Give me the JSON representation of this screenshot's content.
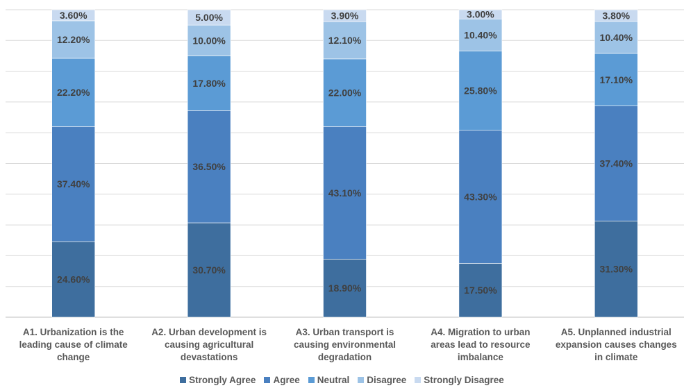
{
  "chart_data": {
    "type": "bar",
    "stacked": true,
    "categories": [
      "A1. Urbanization is the leading cause of climate change",
      "A2. Urban development is causing agricultural devastations",
      "A3. Urban transport is causing environmental degradation",
      "A4. Migration to urban areas lead to resource imbalance",
      "A5. Unplanned industrial expansion causes changes in climate"
    ],
    "category_lines": [
      [
        "A1. Urbanization is the",
        "leading cause of climate",
        "change"
      ],
      [
        "A2. Urban development is",
        "causing agricultural",
        "devastations"
      ],
      [
        "A3. Urban transport is",
        "causing environmental",
        "degradation"
      ],
      [
        "A4. Migration to urban",
        "areas lead to resource",
        "imbalance"
      ],
      [
        "A5. Unplanned industrial",
        "expansion causes changes",
        "in climate"
      ]
    ],
    "series": [
      {
        "name": "Strongly Agree",
        "color": "#3e6e9e",
        "values": [
          24.6,
          30.7,
          18.9,
          17.5,
          31.3
        ],
        "labels": [
          "24.60%",
          "30.70%",
          "18.90%",
          "17.50%",
          "31.30%"
        ]
      },
      {
        "name": "Agree",
        "color": "#4a80c0",
        "values": [
          37.4,
          36.5,
          43.1,
          43.3,
          37.4
        ],
        "labels": [
          "37.40%",
          "36.50%",
          "43.10%",
          "43.30%",
          "37.40%"
        ]
      },
      {
        "name": "Neutral",
        "color": "#5b9bd5",
        "values": [
          22.2,
          17.8,
          22.0,
          25.8,
          17.1
        ],
        "labels": [
          "22.20%",
          "17.80%",
          "22.00%",
          "25.80%",
          "17.10%"
        ]
      },
      {
        "name": "Disagree",
        "color": "#9dc3e6",
        "values": [
          12.2,
          10.0,
          12.1,
          10.4,
          10.4
        ],
        "labels": [
          "12.20%",
          "10.00%",
          "12.10%",
          "10.40%",
          "10.40%"
        ]
      },
      {
        "name": "Strongly Disagree",
        "color": "#c9daf0",
        "values": [
          3.6,
          5.0,
          3.9,
          3.0,
          3.8
        ],
        "labels": [
          "3.60%",
          "5.00%",
          "3.90%",
          "3.00%",
          "3.80%"
        ]
      }
    ],
    "ylim": [
      0,
      100
    ],
    "grid": true,
    "legend_position": "bottom",
    "title": "",
    "xlabel": "",
    "ylabel": ""
  }
}
